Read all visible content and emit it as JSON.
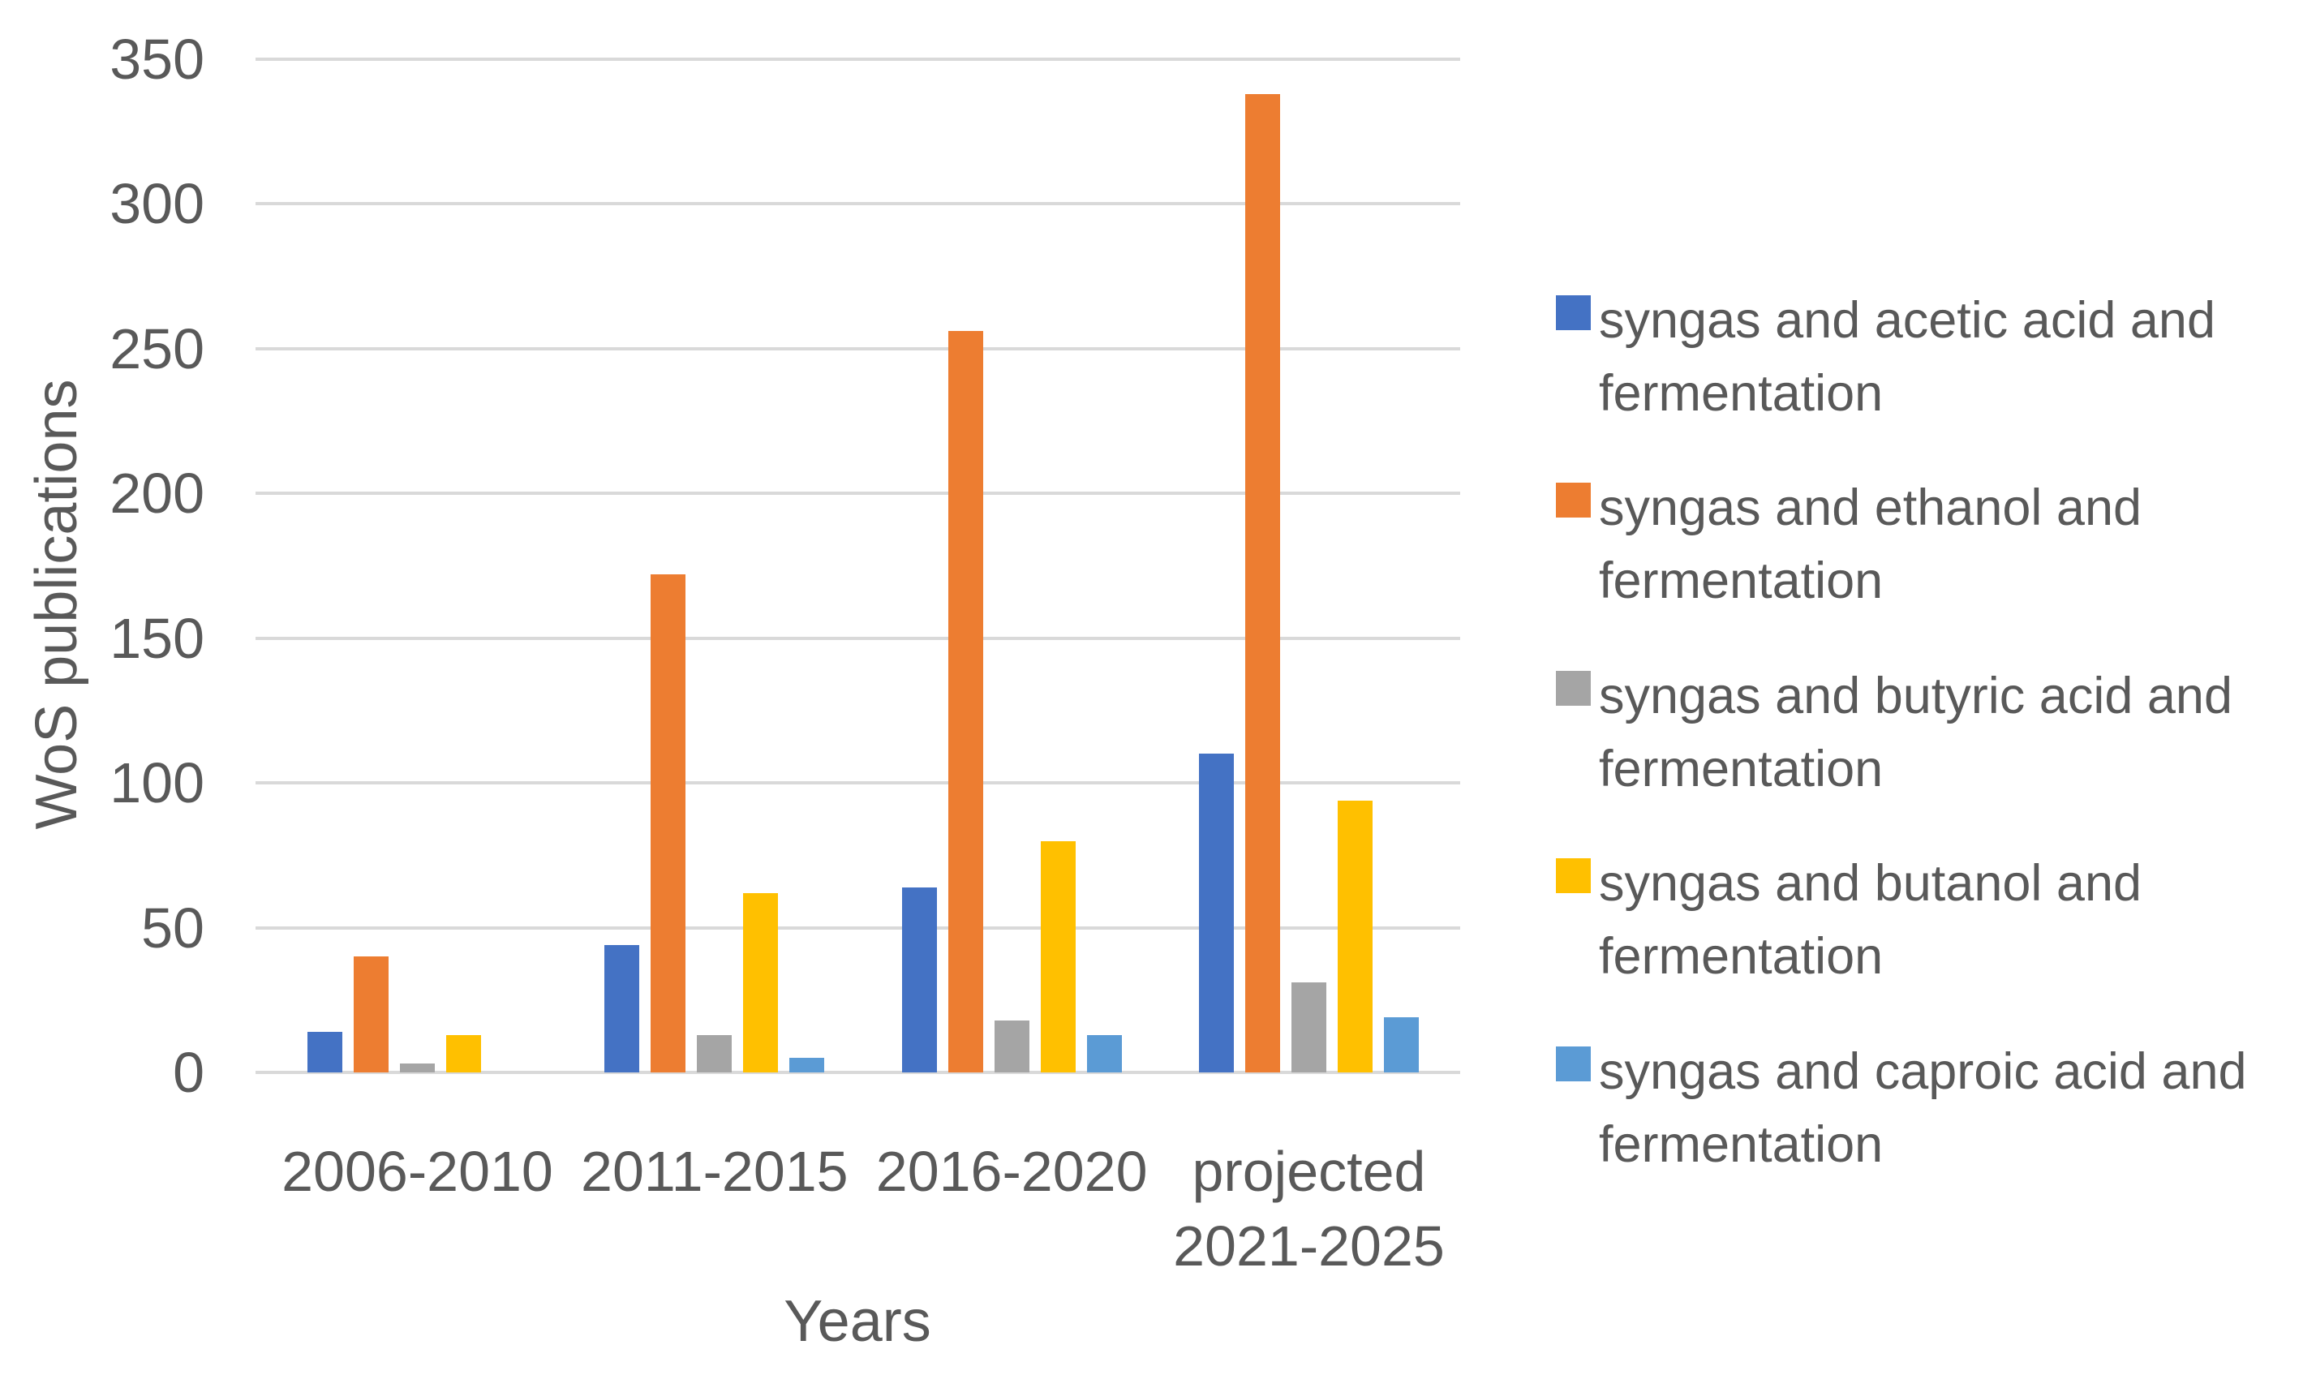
{
  "chart_data": {
    "type": "bar",
    "title": "",
    "xlabel": "Years",
    "ylabel": "WoS publications",
    "categories": [
      "2006-2010",
      "2011-2015",
      "2016-2020",
      "projected\n2021-2025"
    ],
    "series": [
      {
        "name": "syngas and acetic acid and fermentation",
        "color": "#4472C4",
        "values": [
          14,
          44,
          64,
          110
        ]
      },
      {
        "name": "syngas and ethanol and fermentation",
        "color": "#ED7D31",
        "values": [
          40,
          172,
          256,
          338
        ]
      },
      {
        "name": "syngas and butyric acid and fermentation",
        "color": "#A5A5A5",
        "values": [
          3,
          13,
          18,
          31
        ]
      },
      {
        "name": "syngas and butanol and fermentation",
        "color": "#FFC000",
        "values": [
          13,
          62,
          80,
          94
        ]
      },
      {
        "name": "syngas and caproic acid and fermentation",
        "color": "#5B9BD5",
        "values": [
          0,
          5,
          13,
          19
        ]
      }
    ],
    "ylim": [
      0,
      350
    ],
    "yticks": [
      0,
      50,
      100,
      150,
      200,
      250,
      300,
      350
    ],
    "grid": true,
    "legend_position": "right",
    "gridline_color": "#D9D9D9",
    "text_color": "#595959"
  }
}
